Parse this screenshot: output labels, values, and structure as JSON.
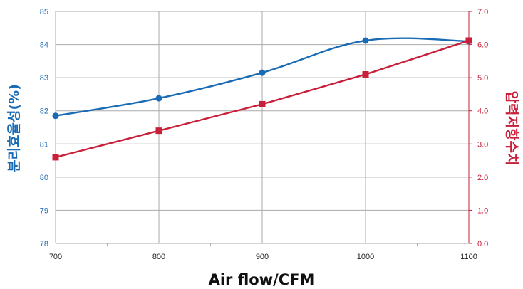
{
  "chart_data": {
    "type": "line",
    "title": "",
    "xlabel": "Air flow/CFM",
    "ylabel_left": "분리효율성(%)",
    "ylabel_right": "압력저항수치",
    "x": [
      700,
      800,
      900,
      1000,
      1100
    ],
    "x_ticks": [
      "700",
      "800",
      "900",
      "1000",
      "1100"
    ],
    "ylim_left": [
      78,
      85
    ],
    "ylim_right": [
      0.0,
      7.0
    ],
    "y_ticks_left": [
      "78",
      "79",
      "80",
      "81",
      "82",
      "83",
      "84",
      "85"
    ],
    "y_ticks_right": [
      "0.0",
      "1.0",
      "2.0",
      "3.0",
      "4.0",
      "5.0",
      "6.0",
      "7.0"
    ],
    "grid": true,
    "series": [
      {
        "axis": "left",
        "marker": "circle",
        "color": "#1a6bb5",
        "smooth": true,
        "values": [
          81.85,
          82.38,
          83.15,
          84.12,
          84.1
        ]
      },
      {
        "axis": "right",
        "marker": "square",
        "color": "#c8203a",
        "smooth": false,
        "values": [
          2.6,
          3.4,
          4.2,
          5.1,
          6.12
        ]
      }
    ],
    "colors": {
      "left_axis": "#1a6bb5",
      "right_axis": "#c8203a",
      "grid": "#aaaaaa",
      "text": "#222222"
    }
  }
}
